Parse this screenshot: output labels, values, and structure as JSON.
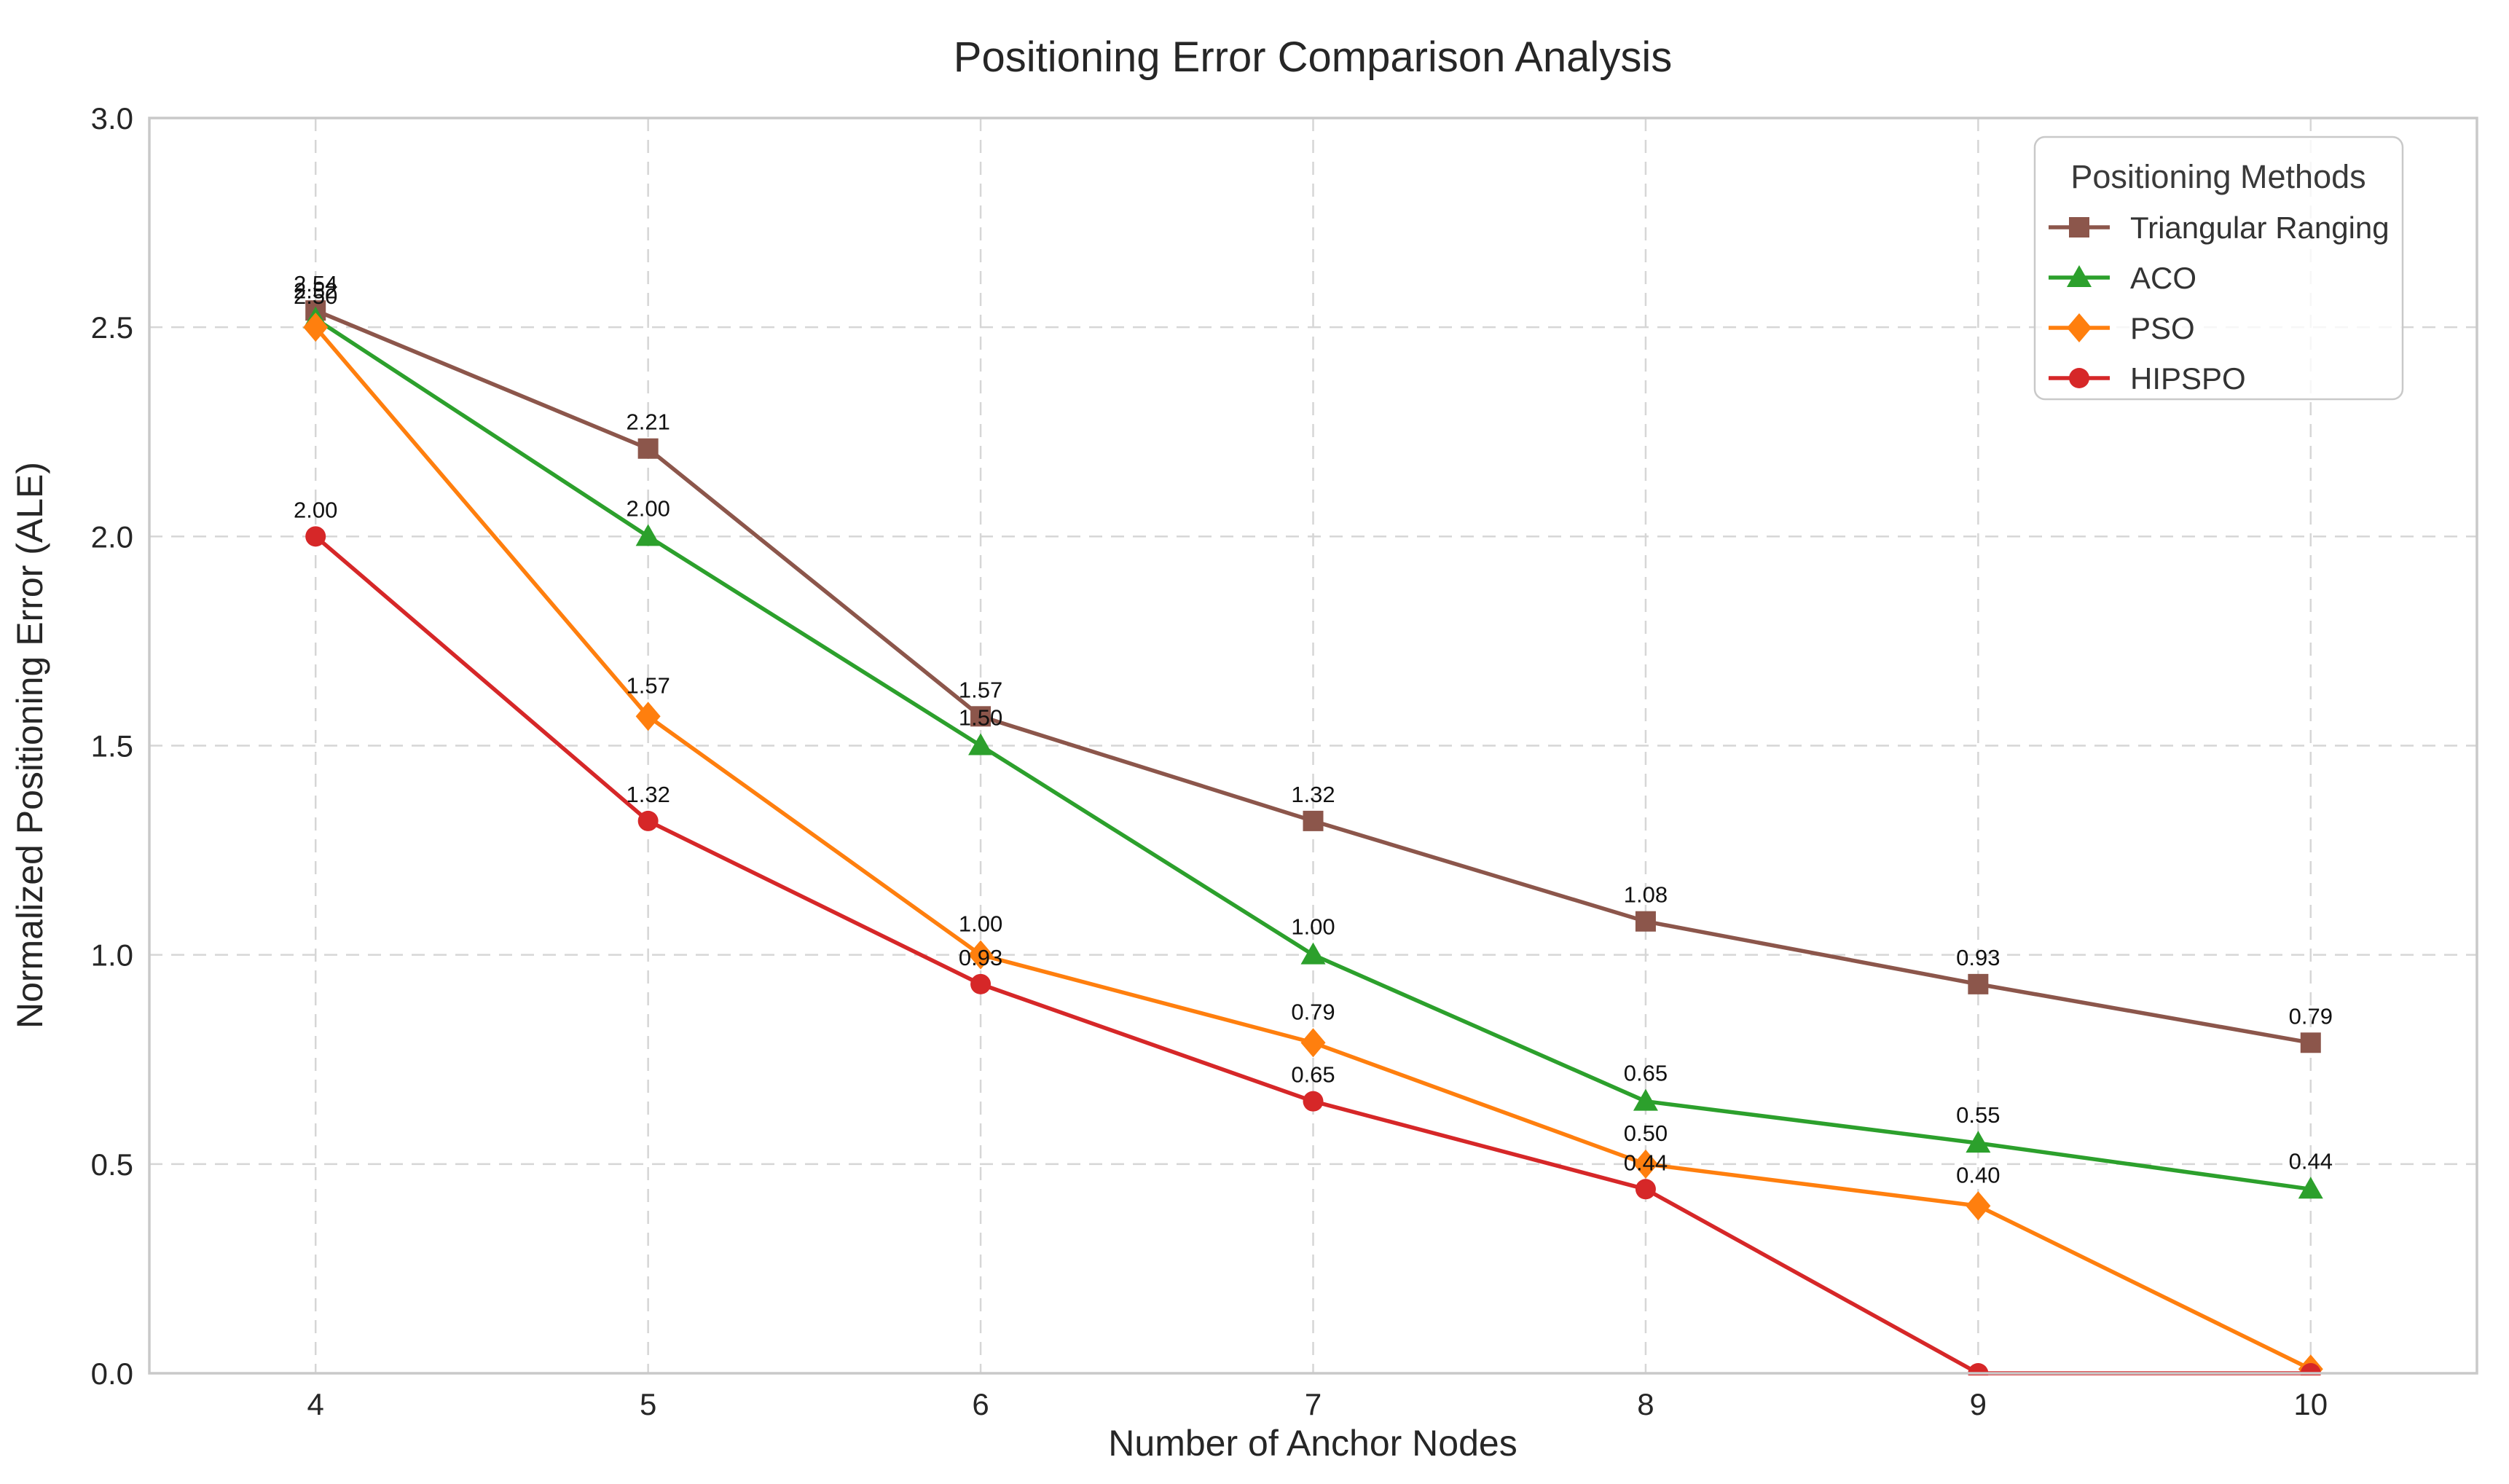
{
  "chart_data": {
    "type": "line",
    "title": "Positioning Error Comparison Analysis",
    "xlabel": "Number of Anchor Nodes",
    "ylabel": "Normalized Positioning Error (ALE)",
    "x": [
      4,
      5,
      6,
      7,
      8,
      9,
      10
    ],
    "xlim": [
      3.5,
      10.5
    ],
    "ylim": [
      0,
      3
    ],
    "xticks": [
      "4",
      "5",
      "6",
      "7",
      "8",
      "9",
      "10"
    ],
    "yticks": [
      "0.0",
      "0.5",
      "1.0",
      "1.5",
      "2.0",
      "2.5",
      "3.0"
    ],
    "ytick_values": [
      0.0,
      0.5,
      1.0,
      1.5,
      2.0,
      2.5,
      3.0
    ],
    "grid": "dashed-on",
    "legend": {
      "title": "Positioning Methods",
      "position": "upper-right"
    },
    "colors": {
      "grid": "#d6d6d6",
      "frame": "#c9c9c9",
      "text": "#262626",
      "annotation": "#111111"
    },
    "series": [
      {
        "name": "Triangular Ranging",
        "color": "#8c564b",
        "marker": "square",
        "values": [
          2.54,
          2.21,
          1.57,
          1.32,
          1.08,
          0.93,
          0.79
        ],
        "labels": [
          "2.54",
          "2.21",
          "1.57",
          "1.32",
          "1.08",
          "0.93",
          "0.79"
        ]
      },
      {
        "name": "ACO",
        "color": "#2ca02c",
        "marker": "triangle",
        "values": [
          2.52,
          2.0,
          1.5,
          1.0,
          0.65,
          0.55,
          0.44
        ],
        "labels": [
          "2.52",
          "2.00",
          "1.50",
          "1.00",
          "0.65",
          "0.55",
          "0.44"
        ]
      },
      {
        "name": "PSO",
        "color": "#ff7f0e",
        "marker": "diamond",
        "values": [
          2.5,
          1.57,
          1.0,
          0.79,
          0.5,
          0.4,
          0.01
        ],
        "labels": [
          "2.50",
          "1.57",
          "1.00",
          "0.79",
          "0.50",
          "0.40",
          null
        ]
      },
      {
        "name": "HIPSPO",
        "color": "#d62728",
        "marker": "circle",
        "values": [
          2.0,
          1.32,
          0.93,
          0.65,
          0.44,
          0.0,
          0.0
        ],
        "labels": [
          "2.00",
          "1.32",
          "0.93",
          "0.65",
          "0.44",
          null,
          null
        ]
      }
    ]
  }
}
